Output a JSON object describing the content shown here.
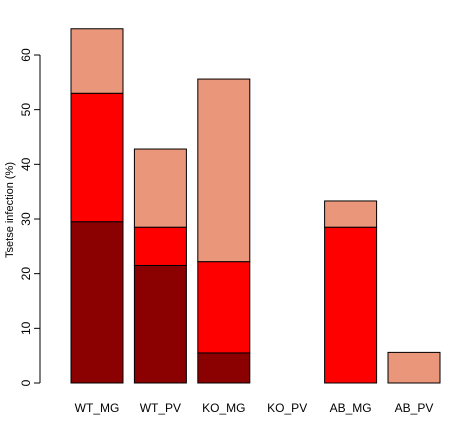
{
  "chart_data": {
    "type": "bar",
    "stacked": true,
    "title": "",
    "xlabel": "",
    "ylabel": "Tsetse infection (%)",
    "categories": [
      "WT_MG",
      "WT_PV",
      "KO_MG",
      "KO_PV",
      "AB_MG",
      "AB_PV"
    ],
    "series": [
      {
        "color": "#8b0000",
        "values": [
          29.5,
          21.5,
          5.5,
          0,
          0,
          0
        ]
      },
      {
        "color": "#ff0000",
        "values": [
          23.5,
          7.0,
          16.7,
          0,
          28.5,
          0
        ]
      },
      {
        "color": "#e9967a",
        "values": [
          11.8,
          14.3,
          33.4,
          0,
          4.8,
          5.6
        ]
      }
    ],
    "ylim": [
      0,
      65
    ],
    "yticks": [
      0,
      10,
      20,
      30,
      40,
      50,
      60
    ],
    "grid": false,
    "legend": "none"
  }
}
